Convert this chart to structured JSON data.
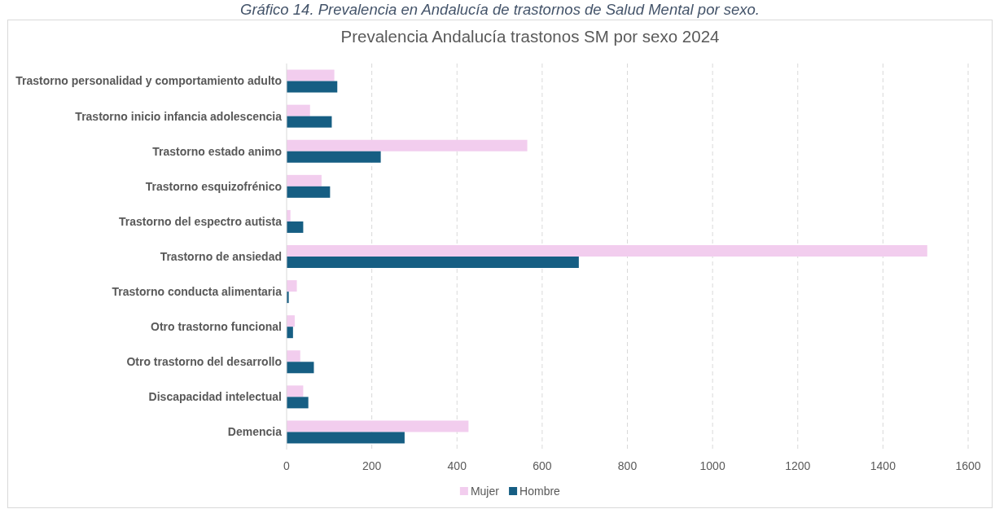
{
  "chart_data": {
    "type": "bar",
    "orientation": "horizontal",
    "title": "Prevalencia Andalucía trastonos SM por sexo 2024",
    "annotations": [
      "Gráfico 14. Prevalencia en Andalucía de trastornos de Salud Mental por sexo."
    ],
    "categories": [
      "Trastorno personalidad y comportamiento adulto",
      "Trastorno inicio infancia adolescencia",
      "Trastorno estado animo",
      "Trastorno esquizofrénico",
      "Trastorno del espectro autista",
      "Trastorno de ansiedad",
      "Trastorno conducta alimentaria",
      "Otro trastorno funcional",
      "Otro trastorno del desarrollo",
      "Discapacidad intelectual",
      "Demencia"
    ],
    "series": [
      {
        "name": "Mujer",
        "color": "#f2cdee",
        "values": [
          112,
          55,
          565,
          82,
          9,
          1504,
          24,
          19,
          32,
          39,
          427
        ]
      },
      {
        "name": "Hombre",
        "color": "#165e83",
        "values": [
          119,
          106,
          221,
          102,
          39,
          686,
          5,
          15,
          64,
          51,
          277
        ]
      }
    ],
    "xlim": [
      0,
      1600
    ],
    "xticks": [
      0,
      200,
      400,
      600,
      800,
      1000,
      1200,
      1400,
      1600
    ],
    "grid": "x",
    "legend": "bottom"
  }
}
